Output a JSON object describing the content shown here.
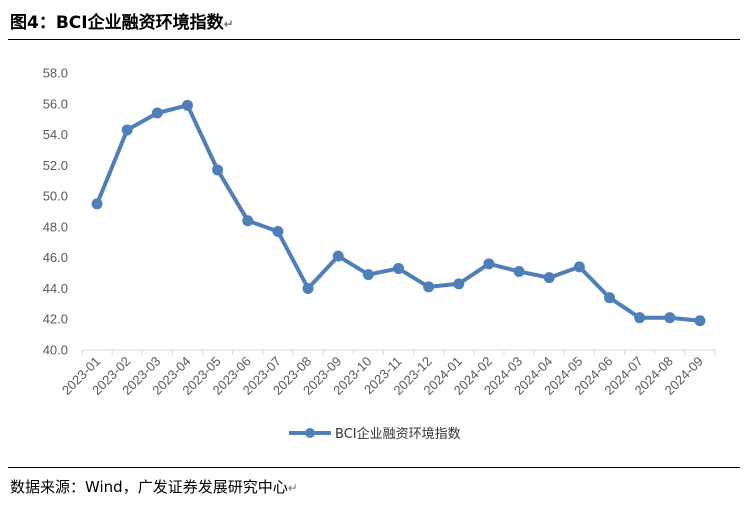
{
  "figure": {
    "title": "图4：BCI企业融资环境指数",
    "source": "数据来源：Wind，广发证券发展研究中心",
    "paragraph_mark": "↵"
  },
  "chart_data": {
    "type": "line",
    "title": "",
    "xlabel": "",
    "ylabel": "",
    "ylim": [
      40,
      58
    ],
    "yticks": [
      "40.0",
      "42.0",
      "44.0",
      "46.0",
      "48.0",
      "50.0",
      "52.0",
      "54.0",
      "56.0",
      "58.0"
    ],
    "categories": [
      "2023-01",
      "2023-02",
      "2023-03",
      "2023-04",
      "2023-05",
      "2023-06",
      "2023-07",
      "2023-08",
      "2023-09",
      "2023-10",
      "2023-11",
      "2023-12",
      "2024-01",
      "2024-02",
      "2024-03",
      "2024-04",
      "2024-05",
      "2024-06",
      "2024-07",
      "2024-08",
      "2024-09"
    ],
    "series": [
      {
        "name": "BCI企业融资环境指数",
        "color": "#4e7fb8",
        "values": [
          49.5,
          54.3,
          55.4,
          55.9,
          51.7,
          48.4,
          47.7,
          44.0,
          46.1,
          44.9,
          45.3,
          44.1,
          44.3,
          45.6,
          45.1,
          44.7,
          45.4,
          43.4,
          42.1,
          42.1,
          41.9
        ]
      }
    ],
    "grid": false,
    "legend": "bottom"
  }
}
